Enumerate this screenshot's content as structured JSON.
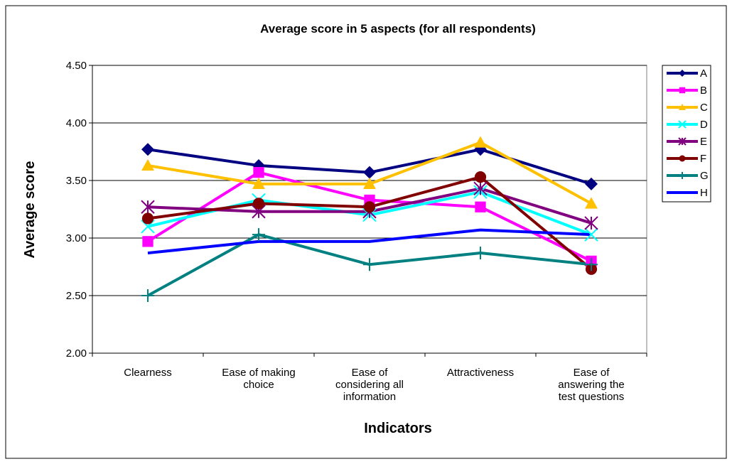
{
  "chart_data": {
    "type": "line",
    "title": "Average score in 5 aspects (for all respondents)",
    "x_label": "Indicators",
    "y_label": "Average score",
    "categories": [
      "Clearness",
      "Ease of making\nchoice",
      "Ease of\nconsidering all\ninformation",
      "Attractiveness",
      "Ease of\nanswering the\ntest questions"
    ],
    "ylim": [
      2.0,
      4.5
    ],
    "yticks": [
      {
        "value": 2.0,
        "label": "2.00"
      },
      {
        "value": 2.5,
        "label": "2.50"
      },
      {
        "value": 3.0,
        "label": "3.00"
      },
      {
        "value": 3.5,
        "label": "3.50"
      },
      {
        "value": 4.0,
        "label": "4.00"
      },
      {
        "value": 4.5,
        "label": "4.50"
      }
    ],
    "grid": true,
    "legend": "right",
    "series": [
      {
        "name": "A",
        "color": "#000080",
        "marker": "diamond",
        "values": [
          3.77,
          3.63,
          3.57,
          3.77,
          3.47
        ]
      },
      {
        "name": "B",
        "color": "#ff00ff",
        "marker": "square",
        "values": [
          2.97,
          3.57,
          3.33,
          3.27,
          2.8
        ]
      },
      {
        "name": "C",
        "color": "#ffc000",
        "marker": "triangle",
        "values": [
          3.63,
          3.47,
          3.47,
          3.83,
          3.3
        ]
      },
      {
        "name": "D",
        "color": "#00ffff",
        "marker": "x",
        "values": [
          3.1,
          3.33,
          3.2,
          3.4,
          3.03
        ]
      },
      {
        "name": "E",
        "color": "#800080",
        "marker": "star",
        "values": [
          3.27,
          3.23,
          3.23,
          3.43,
          3.13
        ]
      },
      {
        "name": "F",
        "color": "#800000",
        "marker": "circle",
        "values": [
          3.17,
          3.3,
          3.27,
          3.53,
          2.73
        ]
      },
      {
        "name": "G",
        "color": "#008080",
        "marker": "plus",
        "values": [
          2.5,
          3.03,
          2.77,
          2.87,
          2.77
        ]
      },
      {
        "name": "H",
        "color": "#0000ff",
        "marker": "none",
        "values": [
          2.87,
          2.97,
          2.97,
          3.07,
          3.03
        ]
      }
    ]
  }
}
